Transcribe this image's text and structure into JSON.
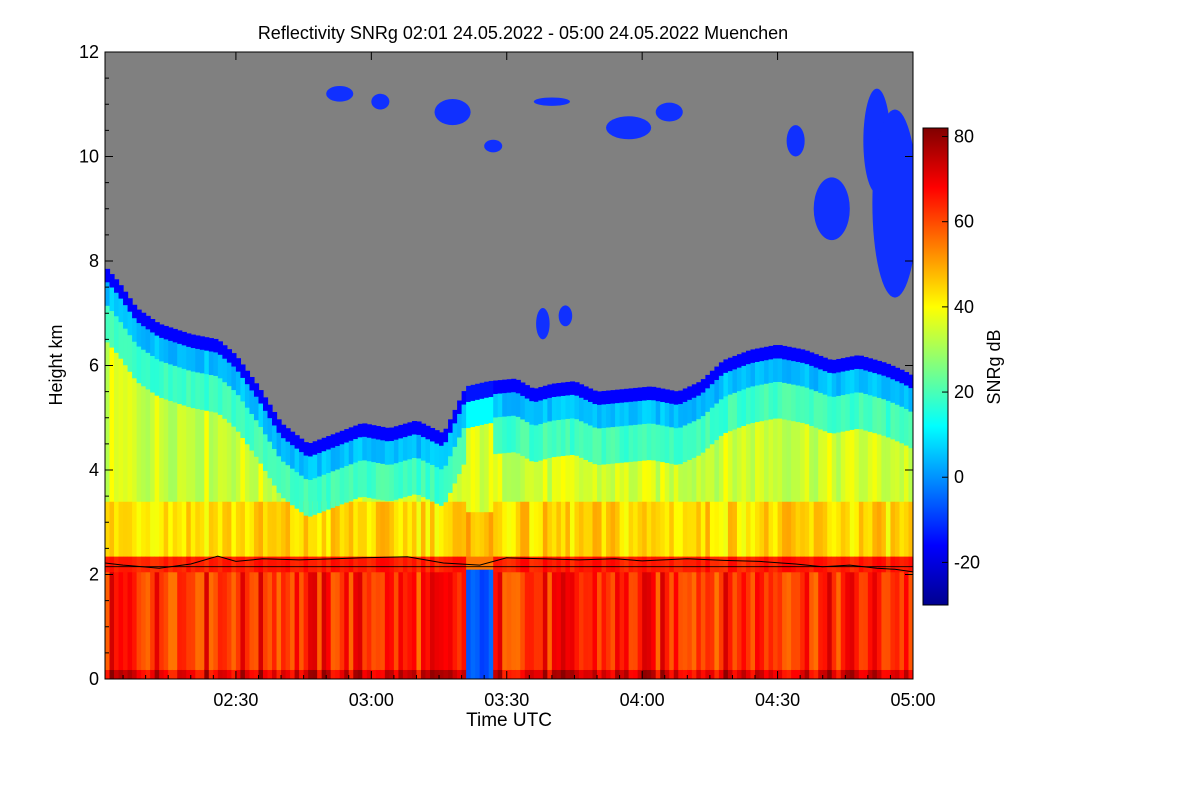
{
  "chart_data": {
    "type": "heatmap",
    "title": "Reflectivity SNRg   02:01 24.05.2022 - 05:00 24.05.2022 Muenchen",
    "xlabel": "Time UTC",
    "ylabel": "Height km",
    "colorbar_label": "SNRg dB",
    "x_range_minutes": [
      121,
      300
    ],
    "xlim": [
      121,
      300
    ],
    "x_ticks": [
      {
        "label": "02:30",
        "value": 150
      },
      {
        "label": "03:00",
        "value": 180
      },
      {
        "label": "03:30",
        "value": 210
      },
      {
        "label": "04:00",
        "value": 240
      },
      {
        "label": "04:30",
        "value": 270
      },
      {
        "label": "05:00",
        "value": 300
      }
    ],
    "ylim": [
      0,
      12
    ],
    "y_ticks": [
      {
        "label": "0",
        "value": 0
      },
      {
        "label": "2",
        "value": 2
      },
      {
        "label": "4",
        "value": 4
      },
      {
        "label": "6",
        "value": 6
      },
      {
        "label": "8",
        "value": 8
      },
      {
        "label": "10",
        "value": 10
      },
      {
        "label": "12",
        "value": 12
      }
    ],
    "clim": [
      -30,
      82
    ],
    "colorbar_ticks": [
      {
        "label": "-20",
        "value": -20
      },
      {
        "label": "0",
        "value": 0
      },
      {
        "label": "20",
        "value": 20
      },
      {
        "label": "40",
        "value": 40
      },
      {
        "label": "60",
        "value": 60
      },
      {
        "label": "80",
        "value": 80
      }
    ],
    "colormap": [
      "#00008f",
      "#0000ff",
      "#0080ff",
      "#00ffff",
      "#80ff80",
      "#ffff00",
      "#ff8000",
      "#ff0000",
      "#800000"
    ],
    "no_signal_color": "#808080",
    "cloud_top_km": [
      [
        121,
        7.9
      ],
      [
        124,
        7.6
      ],
      [
        128,
        7.1
      ],
      [
        133,
        6.8
      ],
      [
        140,
        6.6
      ],
      [
        146,
        6.5
      ],
      [
        150,
        6.2
      ],
      [
        155,
        5.6
      ],
      [
        160,
        4.9
      ],
      [
        166,
        4.5
      ],
      [
        172,
        4.7
      ],
      [
        178,
        4.9
      ],
      [
        184,
        4.8
      ],
      [
        190,
        4.95
      ],
      [
        196,
        4.7
      ],
      [
        201,
        5.6
      ],
      [
        206,
        5.7
      ],
      [
        212,
        5.75
      ],
      [
        216,
        5.55
      ],
      [
        220,
        5.65
      ],
      [
        225,
        5.7
      ],
      [
        230,
        5.5
      ],
      [
        236,
        5.55
      ],
      [
        242,
        5.6
      ],
      [
        248,
        5.5
      ],
      [
        253,
        5.7
      ],
      [
        258,
        6.1
      ],
      [
        264,
        6.3
      ],
      [
        270,
        6.4
      ],
      [
        276,
        6.3
      ],
      [
        282,
        6.1
      ],
      [
        288,
        6.2
      ],
      [
        294,
        6.05
      ],
      [
        298,
        5.9
      ],
      [
        300,
        5.8
      ]
    ],
    "cirrus_patches": [
      {
        "t": 173,
        "h": 11.2,
        "dt": 3,
        "dh": 0.15
      },
      {
        "t": 182,
        "h": 11.05,
        "dt": 2,
        "dh": 0.15
      },
      {
        "t": 198,
        "h": 10.85,
        "dt": 4,
        "dh": 0.25
      },
      {
        "t": 207,
        "h": 10.2,
        "dt": 2,
        "dh": 0.12
      },
      {
        "t": 220,
        "h": 11.05,
        "dt": 4,
        "dh": 0.08
      },
      {
        "t": 237,
        "h": 10.55,
        "dt": 5,
        "dh": 0.22
      },
      {
        "t": 246,
        "h": 10.85,
        "dt": 3,
        "dh": 0.18
      },
      {
        "t": 274,
        "h": 10.3,
        "dt": 2,
        "dh": 0.3
      },
      {
        "t": 282,
        "h": 9.0,
        "dt": 4,
        "dh": 0.6
      },
      {
        "t": 292,
        "h": 10.3,
        "dt": 3,
        "dh": 1.0
      },
      {
        "t": 296,
        "h": 9.1,
        "dt": 5,
        "dh": 1.8
      },
      {
        "t": 218,
        "h": 6.8,
        "dt": 1.5,
        "dh": 0.3
      },
      {
        "t": 223,
        "h": 6.95,
        "dt": 1.5,
        "dh": 0.2
      }
    ],
    "melting_layer_km": 2.2,
    "boundary_line_km": [
      [
        121,
        2.22
      ],
      [
        125,
        2.18
      ],
      [
        133,
        2.12
      ],
      [
        140,
        2.2
      ],
      [
        146,
        2.35
      ],
      [
        150,
        2.25
      ],
      [
        156,
        2.3
      ],
      [
        164,
        2.28
      ],
      [
        172,
        2.3
      ],
      [
        178,
        2.32
      ],
      [
        188,
        2.34
      ],
      [
        192,
        2.28
      ],
      [
        196,
        2.22
      ],
      [
        204,
        2.18
      ],
      [
        210,
        2.32
      ],
      [
        218,
        2.3
      ],
      [
        226,
        2.28
      ],
      [
        234,
        2.3
      ],
      [
        240,
        2.26
      ],
      [
        250,
        2.3
      ],
      [
        258,
        2.27
      ],
      [
        266,
        2.25
      ],
      [
        274,
        2.2
      ],
      [
        280,
        2.15
      ],
      [
        286,
        2.18
      ],
      [
        292,
        2.12
      ],
      [
        296,
        2.1
      ],
      [
        300,
        2.05
      ]
    ],
    "reference_line_km": 2.15,
    "low_signal_gap": {
      "t_start": 201,
      "t_end": 207
    }
  }
}
